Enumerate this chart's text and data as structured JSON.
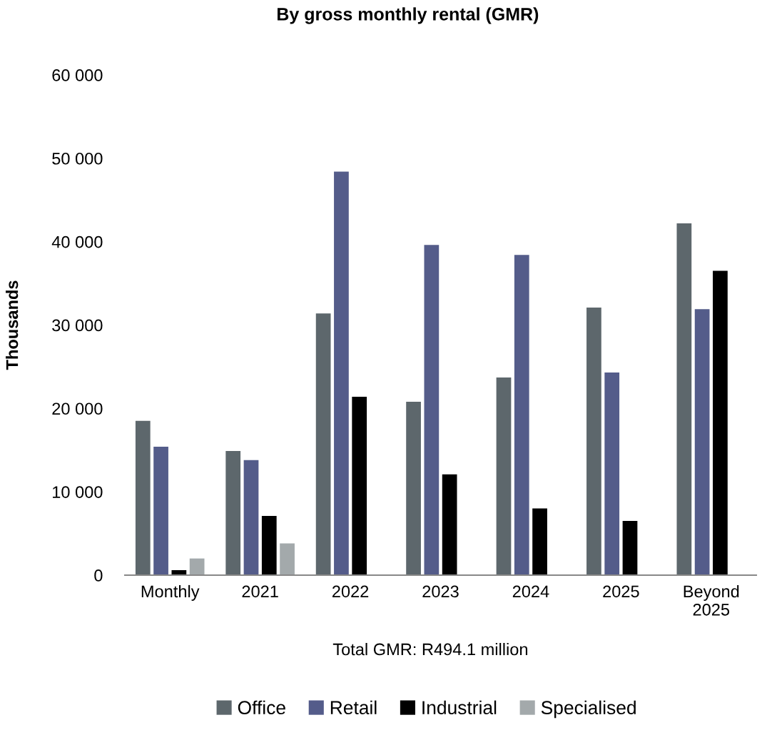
{
  "chart_data": {
    "type": "bar",
    "title": "By gross monthly rental (GMR)",
    "ylabel": "Thousands",
    "categories": [
      "Monthly",
      "2021",
      "2022",
      "2023",
      "2024",
      "2025",
      "Beyond\n2025"
    ],
    "series": [
      {
        "name": "Office",
        "color": "#5d676c",
        "values": [
          18500,
          14900,
          31400,
          20800,
          23700,
          32100,
          42200
        ]
      },
      {
        "name": "Retail",
        "color": "#545c8a",
        "values": [
          15400,
          13800,
          48400,
          39600,
          38400,
          24300,
          31900
        ]
      },
      {
        "name": "Industrial",
        "color": "#000000",
        "values": [
          600,
          7100,
          21400,
          12100,
          8000,
          6500,
          36500
        ]
      },
      {
        "name": "Specialised",
        "color": "#a3a9ab",
        "values": [
          2000,
          3800,
          null,
          null,
          null,
          null,
          null
        ]
      }
    ],
    "ylim": [
      0,
      60000
    ],
    "yticks": [
      {
        "value": 0,
        "label": "0"
      },
      {
        "value": 10000,
        "label": "10 000"
      },
      {
        "value": 20000,
        "label": "20 000"
      },
      {
        "value": 30000,
        "label": "30 000"
      },
      {
        "value": 40000,
        "label": "40 000"
      },
      {
        "value": 50000,
        "label": "50 000"
      },
      {
        "value": 60000,
        "label": "60 000"
      }
    ],
    "annotations": [
      "Total GMR: R494.1 million"
    ],
    "grid": false,
    "legend": "bottom"
  }
}
